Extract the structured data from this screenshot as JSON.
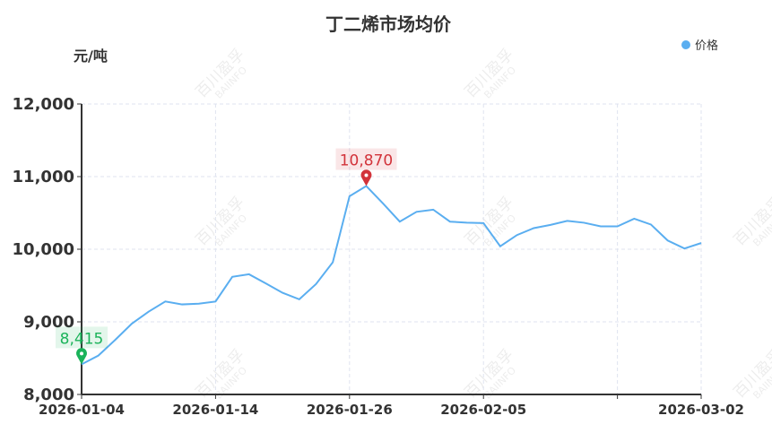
{
  "chart_data": {
    "type": "line",
    "title": "丁二烯市场均价",
    "ylabel": "元/吨",
    "xlabel": "",
    "ylim": [
      8000,
      12000
    ],
    "yticks": [
      8000,
      9000,
      10000,
      11000,
      12000
    ],
    "ytick_labels": [
      "8,000",
      "9,000",
      "10,000",
      "11,000",
      "12,000"
    ],
    "xtick_labels": [
      "2026-01-04",
      "2026-01-14",
      "2026-01-26",
      "2026-02-05",
      "",
      "2026-03-02"
    ],
    "xtick_dates": [
      "2026-01-04",
      "2026-01-14",
      "2026-01-26",
      "2026-02-05",
      "2026-02-24",
      "2026-03-02"
    ],
    "grid": true,
    "legend_position": "top-right",
    "series": [
      {
        "name": "价格",
        "color": "#5aaef0",
        "x": [
          "2026-01-04",
          "2026-01-05",
          "2026-01-06",
          "2026-01-07",
          "2026-01-08",
          "2026-01-09",
          "2026-01-12",
          "2026-01-13",
          "2026-01-14",
          "2026-01-15",
          "2026-01-16",
          "2026-01-19",
          "2026-01-20",
          "2026-01-21",
          "2026-01-22",
          "2026-01-23",
          "2026-01-26",
          "2026-01-27",
          "2026-01-28",
          "2026-01-29",
          "2026-01-30",
          "2026-02-02",
          "2026-02-03",
          "2026-02-04",
          "2026-02-05",
          "2026-02-06",
          "2026-02-09",
          "2026-02-10",
          "2026-02-11",
          "2026-02-12",
          "2026-02-13",
          "2026-02-14",
          "2026-02-24",
          "2026-02-25",
          "2026-02-26",
          "2026-02-27",
          "2026-02-28",
          "2026-03-02"
        ],
        "values": [
          8415,
          8535,
          8750,
          8975,
          9140,
          9280,
          9240,
          9250,
          9280,
          9620,
          9655,
          9530,
          9400,
          9310,
          9520,
          9820,
          10730,
          10870,
          10630,
          10380,
          10515,
          10545,
          10380,
          10365,
          10360,
          10040,
          10195,
          10290,
          10335,
          10390,
          10365,
          10315,
          10315,
          10420,
          10340,
          10120,
          10010,
          10085
        ]
      }
    ],
    "annotations": [
      {
        "type": "max",
        "label": "10,870",
        "value": 10870,
        "color": "#d2333a"
      },
      {
        "type": "min",
        "label": "8,415",
        "value": 8415,
        "color": "#1bb35a"
      }
    ]
  },
  "watermark": {
    "cn": "百川盈孚",
    "en": "BAIINFO"
  }
}
